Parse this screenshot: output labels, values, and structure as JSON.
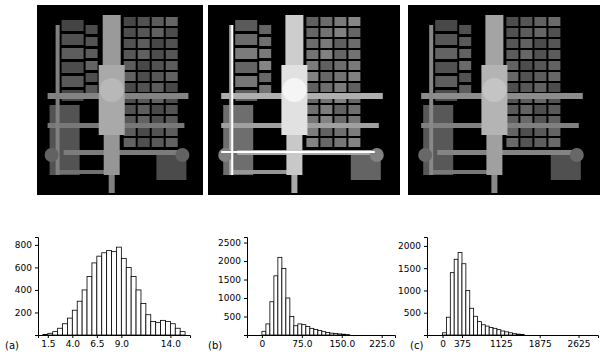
{
  "chart_data": [
    {
      "type": "histogram",
      "title": "(a)",
      "bins": [
        1,
        1.5,
        2,
        2.5,
        3,
        3.5,
        4,
        4.5,
        5,
        5.5,
        6,
        6.5,
        7,
        7.5,
        8,
        8.5,
        9,
        9.5,
        10,
        10.5,
        11,
        11.5,
        12,
        12.5,
        13,
        13.5,
        14,
        14.5,
        15,
        15.5
      ],
      "values": [
        5,
        15,
        30,
        60,
        100,
        150,
        220,
        300,
        400,
        520,
        640,
        700,
        730,
        750,
        740,
        780,
        680,
        600,
        520,
        400,
        280,
        180,
        120,
        110,
        130,
        120,
        100,
        60,
        30
      ],
      "xlim": [
        0.5,
        16
      ],
      "ylim": [
        0,
        870
      ],
      "xticks": [
        1.5,
        {
          "value": 4,
          "label": "4.0"
        },
        6.5,
        {
          "value": 9,
          "label": "9.0"
        },
        {
          "value": 14,
          "label": "14.0"
        }
      ],
      "yticks": [
        200,
        400,
        600,
        800
      ]
    },
    {
      "type": "histogram",
      "title": "(b)",
      "bins": [
        0,
        7.5,
        15,
        22.5,
        30,
        37.5,
        45,
        52.5,
        60,
        67.5,
        75,
        82.5,
        90,
        97.5,
        105,
        112.5,
        120,
        127.5,
        135,
        142.5,
        150,
        157.5,
        165
      ],
      "values": [
        100,
        300,
        900,
        1600,
        2100,
        1800,
        1000,
        500,
        250,
        300,
        280,
        230,
        180,
        150,
        120,
        90,
        70,
        50,
        40,
        30,
        20,
        10
      ],
      "xlim": [
        -28,
        250
      ],
      "ylim": [
        0,
        2650
      ],
      "xticks": [
        0,
        {
          "value": 75,
          "label": "75.0"
        },
        {
          "value": 150,
          "label": "150.0"
        },
        {
          "value": 225,
          "label": "225.0"
        }
      ],
      "yticks": [
        500,
        1000,
        1500,
        2000,
        2500
      ]
    },
    {
      "type": "histogram",
      "title": "(c)",
      "bins": [
        0,
        75,
        150,
        225,
        300,
        375,
        450,
        525,
        600,
        675,
        750,
        825,
        900,
        975,
        1050,
        1125,
        1200,
        1275,
        1350,
        1425,
        1500,
        1575
      ],
      "values": [
        50,
        400,
        1400,
        1700,
        1850,
        1600,
        1000,
        600,
        420,
        300,
        230,
        200,
        170,
        150,
        120,
        90,
        70,
        50,
        30,
        20,
        10
      ],
      "xlim": [
        -300,
        3000
      ],
      "ylim": [
        0,
        2200
      ],
      "xticks": [
        0,
        375,
        1125,
        1875,
        2625
      ],
      "yticks": [
        500,
        1000,
        1500,
        2000
      ]
    }
  ]
}
